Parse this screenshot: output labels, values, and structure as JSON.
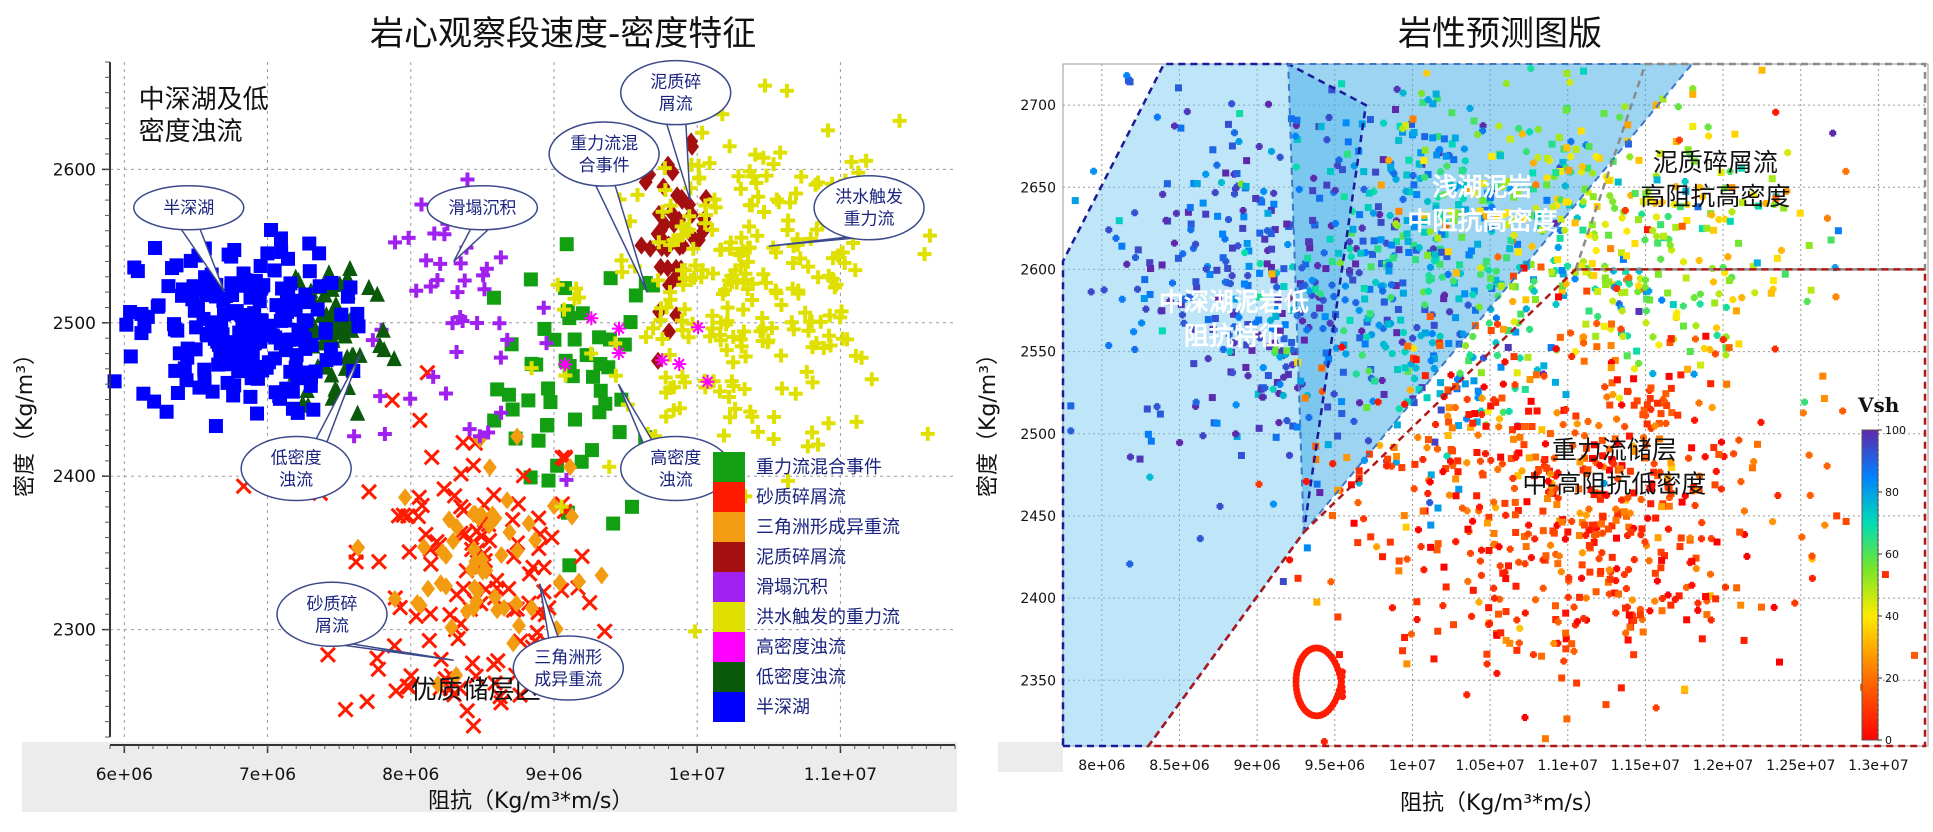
{
  "titles": {
    "left": "岩心观察段速度-密度特征",
    "right": "岩性预测图版"
  },
  "colors": {
    "重力流混合事件": "#12a012",
    "砂质碎屑流": "#ff1a00",
    "三角洲形成异重流": "#f39c12",
    "泥质碎屑流": "#a50f0f",
    "滑塌沉积": "#a020f0",
    "洪水触发的重力流": "#e0e000",
    "高密度浊流": "#ff00ff",
    "低密度浊流": "#0b5a0b",
    "半深湖": "#0000ff"
  },
  "chart_data": [
    {
      "type": "scatter",
      "title": "岩心观察段速度-密度特征",
      "xlabel": "阻抗（Kg/m³*m/s）",
      "ylabel": "密度（Kg/m³）",
      "xlim": [
        5900000,
        11800000
      ],
      "ylim": [
        2230,
        2670
      ],
      "x_ticks": [
        6000000,
        7000000,
        8000000,
        9000000,
        10000000,
        11000000
      ],
      "x_tick_labels": [
        "6e+06",
        "7e+06",
        "8e+06",
        "9e+06",
        "1e+07",
        "1.1e+07"
      ],
      "y_ticks": [
        2300,
        2400,
        2500,
        2600
      ],
      "y_tick_labels": [
        "2300",
        "2400",
        "2500",
        "2600"
      ],
      "grid": true,
      "legend_position": "bottom-right",
      "series": [
        {
          "name": "重力流混合事件",
          "marker": "square",
          "cx": 9200000,
          "cy": 2460,
          "sx": 300000,
          "sy": 45,
          "n": 55
        },
        {
          "name": "砂质碎屑流",
          "marker": "x",
          "cx": 8400000,
          "cy": 2330,
          "sx": 450000,
          "sy": 55,
          "n": 130
        },
        {
          "name": "三角洲形成异重流",
          "marker": "diamond",
          "cx": 8500000,
          "cy": 2345,
          "sx": 300000,
          "sy": 35,
          "n": 60
        },
        {
          "name": "泥质碎屑流",
          "marker": "diamond",
          "cx": 9850000,
          "cy": 2560,
          "sx": 120000,
          "sy": 25,
          "n": 45
        },
        {
          "name": "滑塌沉积",
          "marker": "plus",
          "cx": 8300000,
          "cy": 2500,
          "sx": 350000,
          "sy": 40,
          "n": 45
        },
        {
          "name": "洪水触发的重力流",
          "marker": "plus",
          "cx": 10300000,
          "cy": 2520,
          "sx": 550000,
          "sy": 55,
          "n": 260
        },
        {
          "name": "高密度浊流",
          "marker": "star",
          "cx": 9600000,
          "cy": 2480,
          "sx": 250000,
          "sy": 20,
          "n": 8
        },
        {
          "name": "低密度浊流",
          "marker": "triangle",
          "cx": 7500000,
          "cy": 2495,
          "sx": 180000,
          "sy": 30,
          "n": 70
        },
        {
          "name": "半深湖",
          "marker": "square",
          "cx": 6800000,
          "cy": 2495,
          "sx": 350000,
          "sy": 28,
          "n": 220
        }
      ],
      "annotations": [
        {
          "text": [
            "中深湖及低",
            "密度浊流"
          ],
          "style": "region",
          "x": 6100000,
          "y": 2640
        },
        {
          "text": [
            "优质储层区"
          ],
          "style": "region",
          "x": 8000000,
          "y": 2255
        },
        {
          "text": [
            "半深湖"
          ],
          "style": "callout",
          "x": 6450000,
          "y": 2575,
          "tx": 6700000,
          "ty": 2520
        },
        {
          "text": [
            "滑塌沉积"
          ],
          "style": "callout",
          "x": 8500000,
          "y": 2575,
          "tx": 8300000,
          "ty": 2540
        },
        {
          "text": [
            "重力流混",
            "合事件"
          ],
          "style": "callout",
          "x": 9350000,
          "y": 2610,
          "tx": 9650000,
          "ty": 2520
        },
        {
          "text": [
            "泥质碎",
            "屑流"
          ],
          "style": "callout",
          "x": 9850000,
          "y": 2650,
          "tx": 9950000,
          "ty": 2580
        },
        {
          "text": [
            "洪水触发",
            "重力流"
          ],
          "style": "callout",
          "x": 11200000,
          "y": 2575,
          "tx": 10500000,
          "ty": 2550
        },
        {
          "text": [
            "低密度",
            "浊流"
          ],
          "style": "callout",
          "x": 7200000,
          "y": 2405,
          "tx": 7650000,
          "ty": 2480
        },
        {
          "text": [
            "高密度",
            "浊流"
          ],
          "style": "callout",
          "x": 9850000,
          "y": 2405,
          "tx": 9450000,
          "ty": 2460
        },
        {
          "text": [
            "砂质碎",
            "屑流"
          ],
          "style": "callout",
          "x": 7450000,
          "y": 2310,
          "tx": 8300000,
          "ty": 2280
        },
        {
          "text": [
            "三角洲形",
            "成异重流"
          ],
          "style": "callout",
          "x": 9100000,
          "y": 2275,
          "tx": 8900000,
          "ty": 2330
        }
      ]
    },
    {
      "type": "scatter",
      "title": "岩性预测图版",
      "xlabel": "阻抗（Kg/m³*m/s）",
      "ylabel": "密度（Kg/m³）",
      "xlim": [
        7750000,
        13300000
      ],
      "ylim": [
        2310,
        2725
      ],
      "x_ticks": [
        8000000,
        8500000,
        9000000,
        9500000,
        10000000,
        10500000,
        11000000,
        11500000,
        12000000,
        12500000,
        13000000
      ],
      "x_tick_labels": [
        "8e+06",
        "8.5e+06",
        "9e+06",
        "9.5e+06",
        "1e+07",
        "1.05e+07",
        "1.1e+07",
        "1.15e+07",
        "1.2e+07",
        "1.25e+07",
        "1.3e+07"
      ],
      "y_ticks": [
        2350,
        2400,
        2450,
        2500,
        2550,
        2600,
        2650,
        2700
      ],
      "y_tick_labels": [
        "2350",
        "2400",
        "2450",
        "2500",
        "2550",
        "2600",
        "2650",
        "2700"
      ],
      "grid": true,
      "colorbar": {
        "label": "Vsh",
        "min": 0,
        "max": 100,
        "ticks": [
          0,
          20,
          40,
          60,
          80,
          100
        ]
      },
      "point_clouds": [
        {
          "cx": 9000000,
          "cy": 2590,
          "sx": 600000,
          "sy": 60,
          "n": 380,
          "vsh_mean": 92,
          "vsh_sd": 7
        },
        {
          "cx": 10100000,
          "cy": 2610,
          "sx": 500000,
          "sy": 55,
          "n": 380,
          "vsh_mean": 75,
          "vsh_sd": 12
        },
        {
          "cx": 11300000,
          "cy": 2620,
          "sx": 600000,
          "sy": 45,
          "n": 380,
          "vsh_mean": 50,
          "vsh_sd": 15
        },
        {
          "cx": 11000000,
          "cy": 2460,
          "sx": 700000,
          "sy": 55,
          "n": 650,
          "vsh_mean": 12,
          "vsh_sd": 9
        }
      ],
      "regions": [
        {
          "name": "中深湖泥岩低阻抗特征",
          "label": [
            "中深湖泥岩低",
            "阻抗特征"
          ],
          "style": "white"
        },
        {
          "name": "浅湖泥岩中阻抗高密度",
          "label": [
            "浅湖泥岩",
            "中阻抗高密度"
          ],
          "style": "white"
        },
        {
          "name": "泥质碎屑流高阻抗高密度",
          "label": [
            "泥质碎屑流",
            "高阻抗高密度"
          ],
          "style": "dark"
        },
        {
          "name": "重力流储层中-高阻抗低密度",
          "label": [
            "重力流储层",
            "中-高阻抗低密度"
          ],
          "style": "dark"
        }
      ]
    }
  ]
}
